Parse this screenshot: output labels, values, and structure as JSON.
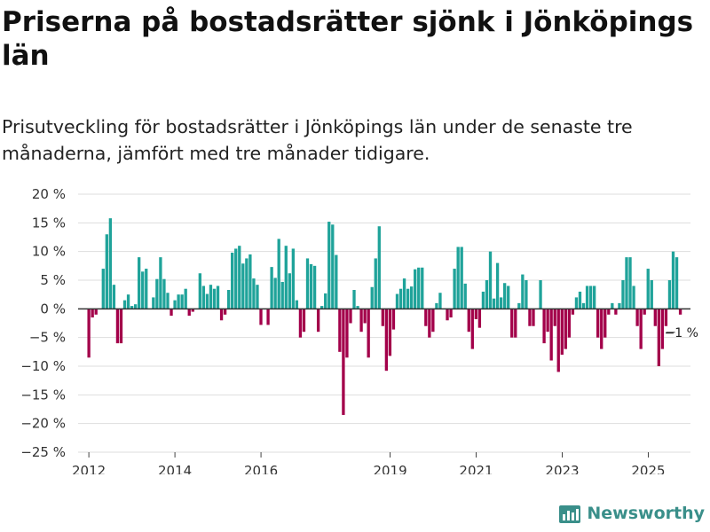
{
  "title": "Priserna på bostadsrätter sjönk i Jönköpings län",
  "subtitle": "Prisutveckling för bostadsrätter i Jönköpings län under de senaste tre månaderna, jämfört med tre månader tidigare.",
  "brand": {
    "name": "Newsworthy",
    "icon": "newsworthy-logo-icon"
  },
  "colors": {
    "positive": "#1fa39a",
    "negative": "#a3004a",
    "grid": "#dddddd",
    "zero": "#333333"
  },
  "chart_data": {
    "type": "bar",
    "title": "Priserna på bostadsrätter sjönk i Jönköpings län",
    "xlabel": "",
    "ylabel": "",
    "ylim": [
      -25,
      20
    ],
    "yticks": [
      20,
      15,
      10,
      5,
      0,
      -5,
      -10,
      -15,
      -20,
      -25
    ],
    "ytick_labels": [
      "20 %",
      "15 %",
      "10 %",
      "5 %",
      "0 %",
      "−5 %",
      "−10 %",
      "−15 %",
      "−20 %",
      "−25 %"
    ],
    "xticks": [
      2012,
      2014,
      2016,
      2019,
      2021,
      2023,
      2025
    ],
    "x_start": 2012.0,
    "x_step": 0.0833,
    "values": [
      -8.5,
      -1.5,
      -1,
      0,
      7,
      13,
      15.8,
      4.2,
      -6,
      -6,
      1.5,
      2.5,
      0.5,
      0.8,
      9,
      6.5,
      7,
      0,
      2,
      5.2,
      9,
      5.2,
      2.8,
      -1.2,
      1.5,
      2.5,
      2.5,
      3.5,
      -1.2,
      -0.5,
      0,
      6.2,
      4,
      2.6,
      4.2,
      3.5,
      4,
      -2,
      -1,
      3.3,
      9.8,
      10.5,
      11,
      7.9,
      8.8,
      9.5,
      5.3,
      4.2,
      -2.8,
      0,
      -2.8,
      7.3,
      5.4,
      12.2,
      4.7,
      11,
      6.2,
      10.5,
      1.5,
      -5,
      -4,
      8.8,
      7.8,
      7.5,
      -4,
      0.5,
      2.7,
      15.2,
      14.7,
      9.4,
      -7.5,
      -18.5,
      -8.5,
      -2.5,
      3.3,
      0.5,
      -4,
      -2.5,
      -8.5,
      3.8,
      8.8,
      14.4,
      -3,
      -10.8,
      -8.2,
      -3.6,
      2.6,
      3.5,
      5.3,
      3.5,
      3.9,
      6.9,
      7.2,
      7.2,
      -3,
      -5,
      -4,
      1,
      2.8,
      0,
      -2,
      -1.5,
      7,
      10.8,
      10.8,
      4.4,
      -4,
      -7,
      -1.8,
      -3.3,
      3,
      5,
      10,
      1.8,
      8,
      2,
      4.5,
      4,
      -5,
      -5,
      1,
      6,
      5,
      -3,
      -3,
      0,
      5,
      -6,
      -4,
      -9,
      -3,
      -11,
      -8,
      -7,
      -5,
      -1,
      2,
      3,
      1,
      4,
      4,
      4,
      -5,
      -7,
      -5,
      -1,
      1,
      -1,
      1,
      5,
      9,
      9,
      4,
      -3,
      -7,
      -1,
      7,
      5,
      -3,
      -10,
      -7,
      -3,
      5,
      10,
      9,
      -1
    ],
    "annotations": [
      {
        "text": "−1 %",
        "target": "last"
      }
    ]
  }
}
